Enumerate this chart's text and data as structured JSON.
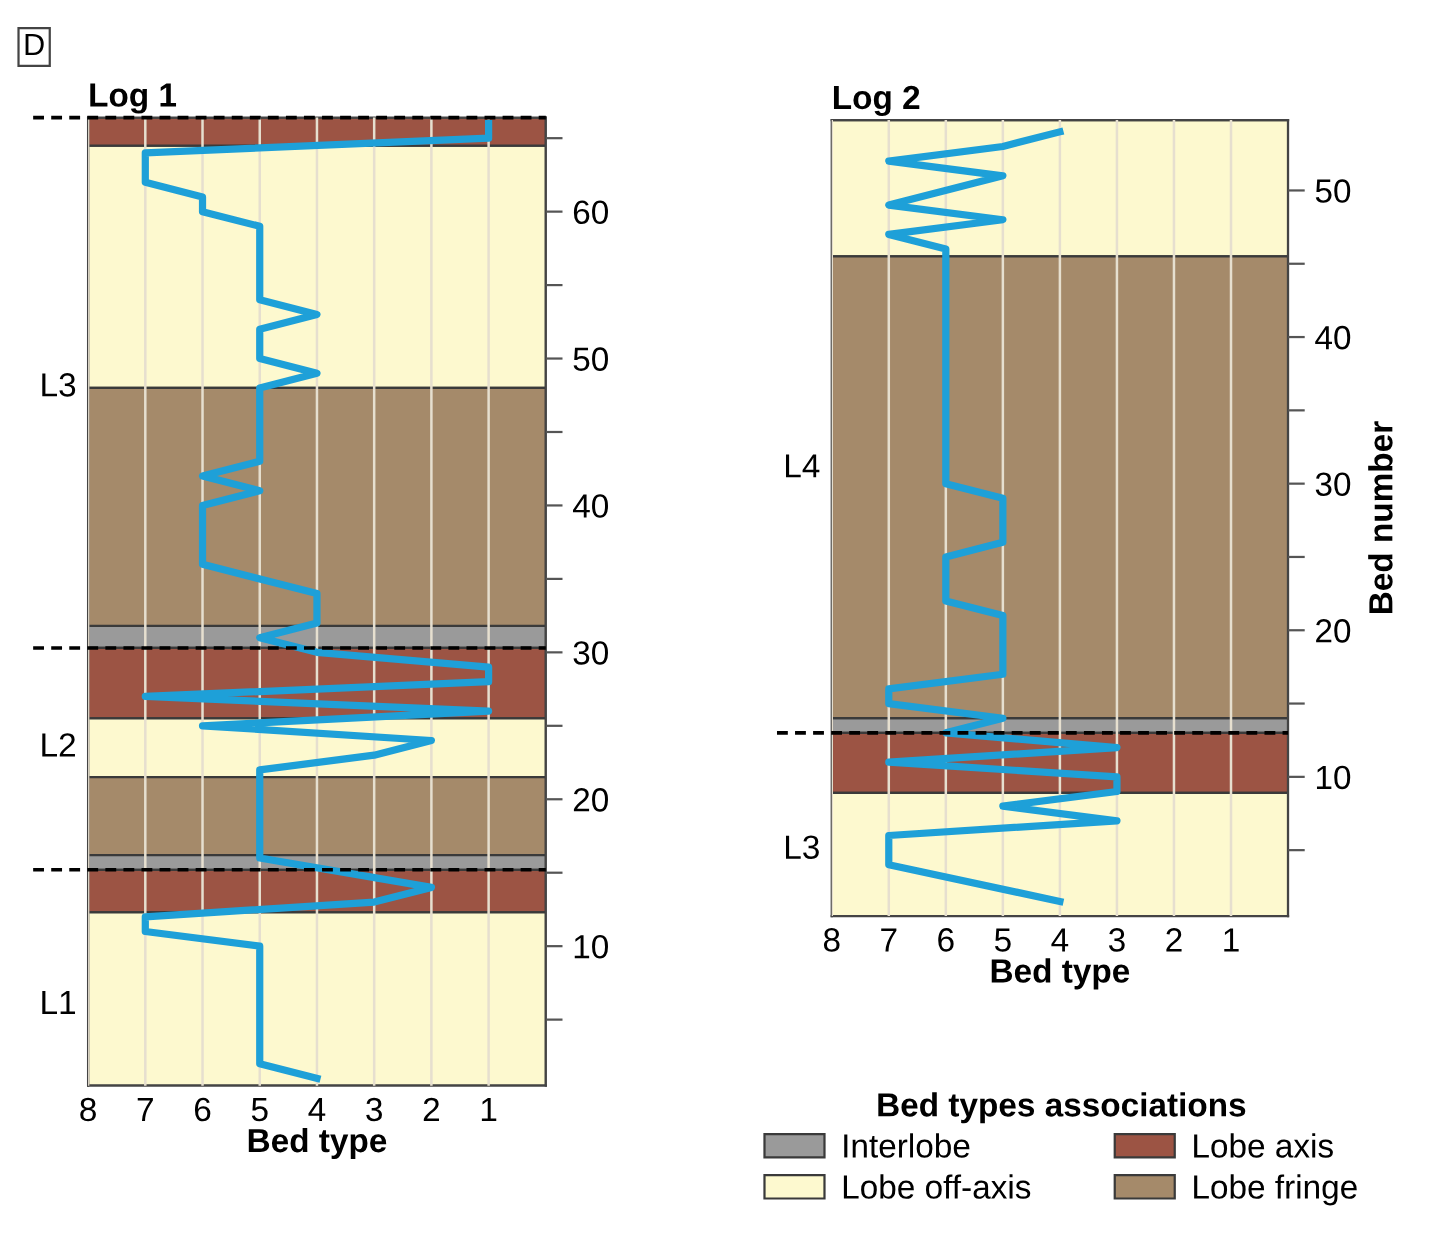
{
  "chart_data": [
    {
      "type": "line",
      "title": "Log 1",
      "xlabel": "Bed type",
      "legend_title": "Bed types associations",
      "legend": "bottom",
      "annotations": [
        "D",
        "L3",
        "L2",
        "L1"
      ],
      "series": [
        {
          "color": "#1ea0d8",
          "x": [
            1,
            1,
            7,
            7,
            6,
            6,
            5,
            5,
            4,
            5,
            5,
            4,
            5,
            5,
            6,
            5,
            6,
            6,
            4,
            4,
            5,
            4,
            1,
            1,
            7,
            1,
            6,
            2,
            3,
            5,
            5,
            2,
            3,
            7,
            7,
            5,
            5,
            4
          ],
          "values": [
            66,
            65,
            64,
            62,
            61,
            60,
            59,
            54,
            53,
            52,
            50,
            49,
            48,
            43,
            42,
            41,
            40,
            36,
            34,
            32,
            31,
            30,
            29,
            28,
            27,
            26,
            25,
            24,
            23,
            22,
            16,
            14,
            13,
            12,
            11,
            10,
            2,
            1
          ]
        }
      ],
      "xlim": [
        8,
        0
      ],
      "xticks": [
        8,
        7,
        6,
        5,
        4,
        3,
        2,
        1
      ],
      "ylim": [
        0.5,
        66.4
      ],
      "yticks": [
        {
          "value": 5,
          "label": null
        },
        10,
        {
          "value": 15,
          "label": null
        },
        20,
        {
          "value": 25,
          "label": null
        },
        30,
        {
          "value": 35,
          "label": null
        },
        40,
        {
          "value": 45,
          "label": null
        },
        50,
        {
          "value": 55,
          "label": null
        },
        60,
        {
          "value": 65,
          "label": null
        }
      ],
      "grid": "x",
      "line_style": "solid",
      "marker": "none",
      "bands": [
        {
          "axis": "y",
          "from": 30.3,
          "to": 31.8,
          "label": "Interlobe",
          "color": "#9a9a9a"
        },
        {
          "axis": "y",
          "from": 48,
          "to": 64.5,
          "label": "Lobe off-axis",
          "color": "#fdf9cf"
        },
        {
          "axis": "y",
          "from": 64.5,
          "to": 66.4,
          "label": "Lobe axis",
          "color": "#9c5444"
        },
        {
          "axis": "y",
          "from": 31.8,
          "to": 48,
          "label": "Lobe fringe",
          "color": "#a58a6a"
        },
        {
          "axis": "y",
          "from": 25.5,
          "to": 30.3,
          "color": "#9c5444"
        },
        {
          "axis": "y",
          "from": 21.5,
          "to": 25.5,
          "color": "#fdf9cf"
        },
        {
          "axis": "y",
          "from": 16.2,
          "to": 21.5,
          "color": "#a58a6a"
        },
        {
          "axis": "y",
          "from": 15.2,
          "to": 16.2,
          "color": "#9a9a9a"
        },
        {
          "axis": "y",
          "from": 12.3,
          "to": 15.2,
          "color": "#9c5444"
        },
        {
          "axis": "y",
          "from": 0.5,
          "to": 12.3,
          "color": "#fdf9cf"
        }
      ],
      "ref_lines": [
        {
          "axis": "y",
          "value": 66.4,
          "color": "#000000",
          "line_style": "dashed"
        },
        {
          "axis": "y",
          "value": 30.3,
          "color": "#000000",
          "line_style": "dashed"
        },
        {
          "axis": "y",
          "value": 15.2,
          "color": "#000000",
          "line_style": "dashed"
        }
      ]
    },
    {
      "type": "line",
      "title": "Log 2",
      "xlabel": "Bed type",
      "ylabel": "Bed number",
      "annotations": [
        "L4",
        "L3"
      ],
      "series": [
        {
          "color": "#1ea0d8",
          "x": [
            4,
            5,
            7,
            5,
            7,
            5,
            7,
            6,
            6,
            5,
            5,
            6,
            6,
            5,
            5,
            7,
            7,
            5,
            6,
            3,
            7,
            3,
            3,
            5,
            3,
            7,
            7,
            4
          ],
          "values": [
            54,
            53,
            52,
            51,
            49,
            48,
            47,
            46,
            30,
            29,
            26,
            25,
            22,
            21,
            17,
            16,
            15,
            14,
            13,
            12,
            11,
            10,
            9,
            8,
            7,
            6,
            4,
            1.5
          ]
        }
      ],
      "xlim": [
        8,
        0
      ],
      "xticks": [
        8,
        7,
        6,
        5,
        4,
        3,
        2,
        1
      ],
      "ylim": [
        0.5,
        54.8
      ],
      "yticks": [
        {
          "value": 5,
          "label": null
        },
        10,
        {
          "value": 15,
          "label": null
        },
        20,
        {
          "value": 25,
          "label": null
        },
        30,
        {
          "value": 35,
          "label": null
        },
        40,
        {
          "value": 45,
          "label": null
        },
        50
      ],
      "grid": "x",
      "line_style": "solid",
      "marker": "none",
      "bands": [
        {
          "axis": "y",
          "from": 13,
          "to": 14,
          "color": "#9a9a9a"
        },
        {
          "axis": "y",
          "from": 45.5,
          "to": 54.8,
          "color": "#fdf9cf"
        },
        {
          "axis": "y",
          "from": 8.9,
          "to": 13,
          "color": "#9c5444"
        },
        {
          "axis": "y",
          "from": 14,
          "to": 45.5,
          "color": "#a58a6a"
        },
        {
          "axis": "y",
          "from": 0.5,
          "to": 8.9,
          "color": "#fdf9cf"
        }
      ],
      "ref_lines": [
        {
          "axis": "y",
          "value": 13,
          "color": "#000000",
          "line_style": "dashed"
        }
      ]
    }
  ]
}
